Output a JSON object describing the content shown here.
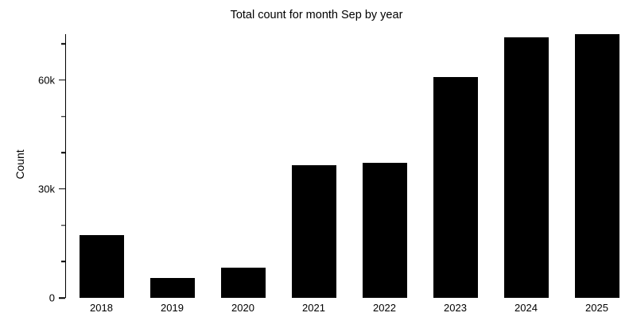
{
  "chart_data": {
    "type": "bar",
    "title": "Total count for month Sep by year",
    "xlabel": "",
    "ylabel": "Count",
    "categories": [
      "2018",
      "2019",
      "2020",
      "2021",
      "2022",
      "2023",
      "2024",
      "2025"
    ],
    "values": [
      17300,
      5500,
      8300,
      36600,
      37200,
      60900,
      71800,
      72700
    ],
    "ylim": [
      0,
      72700
    ],
    "yticks_major": [
      {
        "value": 0,
        "label": "0"
      },
      {
        "value": 30000,
        "label": "30k"
      },
      {
        "value": 60000,
        "label": "60k"
      }
    ],
    "yticks_minor": [
      10000,
      20000,
      40000,
      50000,
      70000
    ],
    "bar_color": "#000000",
    "text_color": "#000000",
    "background": "#ffffff",
    "grid": false,
    "legend": "none"
  }
}
